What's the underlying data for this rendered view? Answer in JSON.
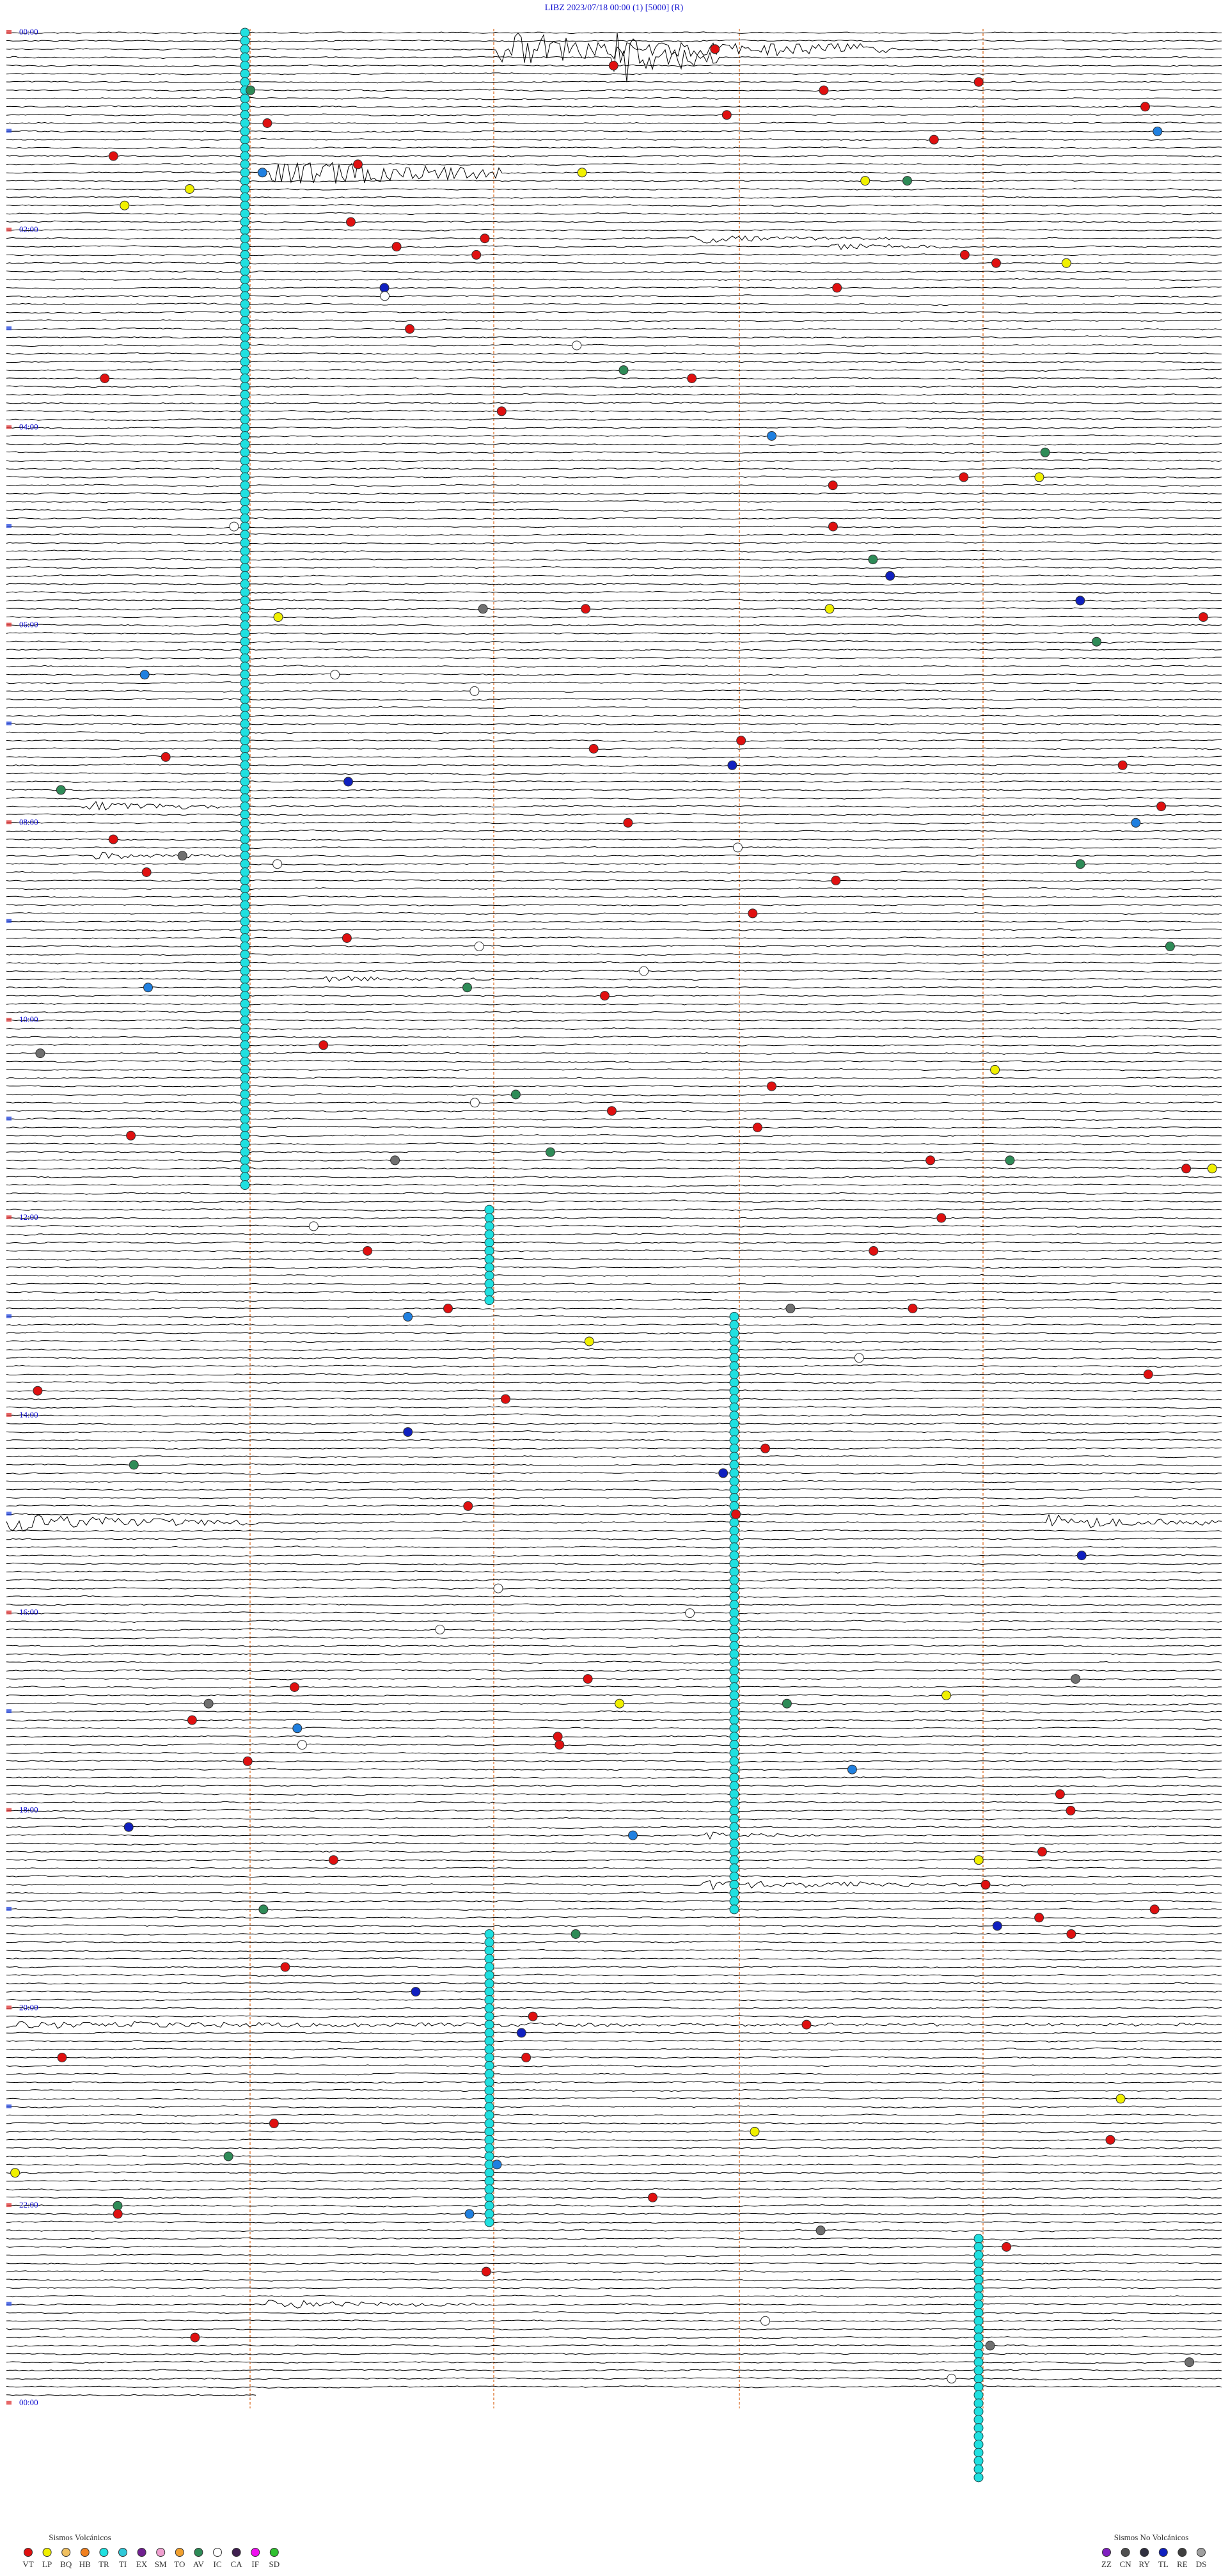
{
  "header": {
    "title": "LIBZ    2023/07/18 00:00     (1)     [5000]   (R)"
  },
  "time_labels": [
    "00:00",
    "02:00",
    "04:00",
    "06:00",
    "08:00",
    "10:00",
    "12:00",
    "14:00",
    "16:00",
    "18:00",
    "20:00",
    "22:00",
    "00:00"
  ],
  "legend": {
    "volcanic": {
      "title": "Sismos Volcánicos",
      "items": [
        {
          "code": "VT",
          "color": "#e01010"
        },
        {
          "code": "LP",
          "color": "#f0f000"
        },
        {
          "code": "BQ",
          "color": "#f0c060"
        },
        {
          "code": "HB",
          "color": "#f08020"
        },
        {
          "code": "TR",
          "color": "#20e0e0"
        },
        {
          "code": "TI",
          "color": "#30c8d8"
        },
        {
          "code": "EX",
          "color": "#702090"
        },
        {
          "code": "SM",
          "color": "#f0a0d0"
        },
        {
          "code": "TO",
          "color": "#f0a030"
        },
        {
          "code": "AV",
          "color": "#2e8b57"
        },
        {
          "code": "IC",
          "color": "#ffffff"
        },
        {
          "code": "CA",
          "color": "#402050"
        },
        {
          "code": "IF",
          "color": "#f010f0"
        },
        {
          "code": "SD",
          "color": "#30c030"
        }
      ]
    },
    "non_volcanic": {
      "title": "Sismos No Volcánicos",
      "items": [
        {
          "code": "ZZ",
          "color": "#8020c0"
        },
        {
          "code": "CN",
          "color": "#505050"
        },
        {
          "code": "RY",
          "color": "#303040"
        },
        {
          "code": "TL",
          "color": "#1020c0"
        },
        {
          "code": "RE",
          "color": "#404040"
        },
        {
          "code": "DS",
          "color": "#a0a0a0"
        }
      ]
    }
  }
}
